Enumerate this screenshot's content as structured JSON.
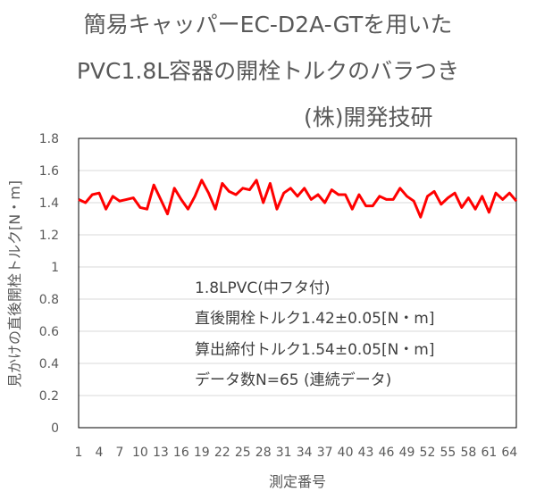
{
  "title_lines": [
    "簡易キャッパーEC-D2A-GTを用いた",
    "PVC1.8L容器の開栓トルクのバラつき",
    "(株)開発技研"
  ],
  "annotations": [
    "1.8LPVC(中フタ付)",
    "直後開栓トルク1.42±0.05[N・m]",
    "算出締付トルク1.54±0.05[N・m]",
    "データ数N=65 (連続データ)"
  ],
  "chart_data": {
    "type": "line",
    "title": "簡易キャッパーEC-D2A-GTを用いた PVC1.8L容器の開栓トルクのバラつき",
    "xlabel": "測定番号",
    "ylabel": "見かけの直後開栓トルク[N・m]",
    "ylim": [
      0,
      1.8
    ],
    "yticks": [
      "0",
      "0.2",
      "0.4",
      "0.6",
      "0.8",
      "1",
      "1.2",
      "1.4",
      "1.6",
      "1.8"
    ],
    "xticks": [
      "1",
      "4",
      "7",
      "10",
      "13",
      "16",
      "19",
      "22",
      "25",
      "28",
      "31",
      "34",
      "37",
      "40",
      "43",
      "46",
      "49",
      "52",
      "55",
      "58",
      "61",
      "64"
    ],
    "grid": "horizontal",
    "line_color": "#ff0000",
    "series": [
      {
        "x": [
          1,
          2,
          3,
          4,
          5,
          6,
          7,
          8,
          9,
          10,
          11,
          12,
          13,
          14,
          15,
          16,
          17,
          18,
          19,
          20,
          21,
          22,
          23,
          24,
          25,
          26,
          27,
          28,
          29,
          30,
          31,
          32,
          33,
          34,
          35,
          36,
          37,
          38,
          39,
          40,
          41,
          42,
          43,
          44,
          45,
          46,
          47,
          48,
          49,
          50,
          51,
          52,
          53,
          54,
          55,
          56,
          57,
          58,
          59,
          60,
          61,
          62,
          63,
          64,
          65
        ],
        "values": [
          1.42,
          1.4,
          1.45,
          1.46,
          1.36,
          1.44,
          1.41,
          1.42,
          1.43,
          1.37,
          1.36,
          1.51,
          1.42,
          1.33,
          1.49,
          1.42,
          1.36,
          1.44,
          1.54,
          1.46,
          1.36,
          1.52,
          1.47,
          1.45,
          1.49,
          1.48,
          1.54,
          1.4,
          1.52,
          1.36,
          1.46,
          1.49,
          1.44,
          1.49,
          1.42,
          1.45,
          1.4,
          1.48,
          1.45,
          1.45,
          1.36,
          1.45,
          1.38,
          1.38,
          1.44,
          1.42,
          1.42,
          1.49,
          1.44,
          1.41,
          1.31,
          1.44,
          1.47,
          1.39,
          1.43,
          1.46,
          1.37,
          1.43,
          1.36,
          1.44,
          1.34,
          1.46,
          1.42,
          1.46,
          1.41
        ]
      }
    ]
  }
}
